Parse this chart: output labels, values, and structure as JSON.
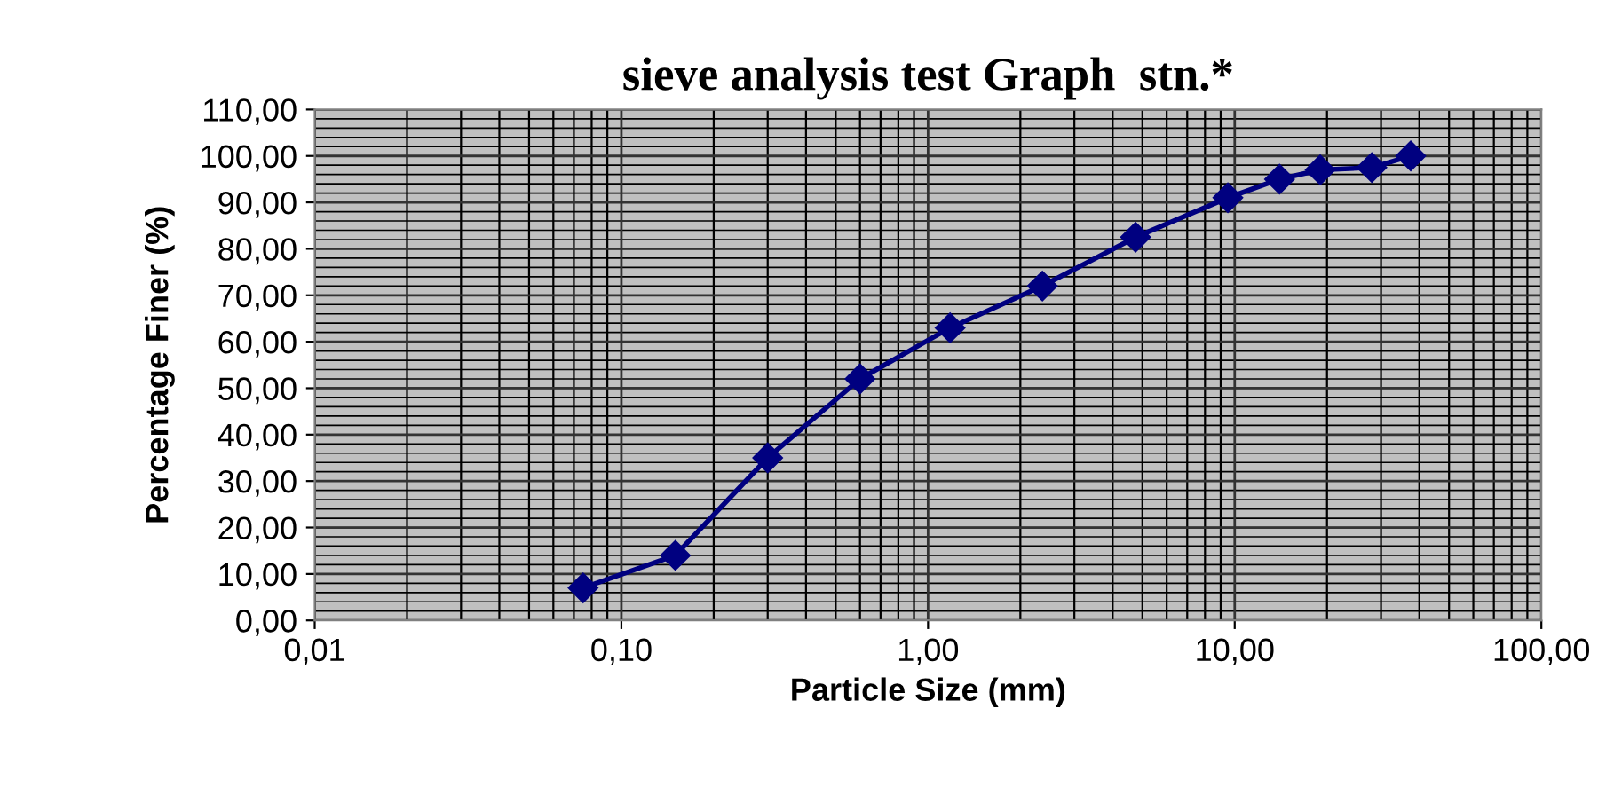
{
  "chart_data": {
    "type": "line",
    "title": "sieve analysis test Graph  stn.*",
    "xlabel": "Particle Size (mm)",
    "ylabel": "Percentage Finer (%)",
    "series": [
      {
        "color": "#000080",
        "x": [
          0.075,
          0.15,
          0.3,
          0.6,
          1.18,
          2.36,
          4.75,
          9.5,
          14,
          19,
          28,
          37.5
        ],
        "values": [
          7,
          14,
          35,
          52,
          63,
          72,
          82.5,
          91,
          95,
          97,
          97.5,
          100
        ]
      }
    ],
    "log": "x",
    "xlim": [
      0.01,
      100
    ],
    "ylim": [
      0,
      110
    ],
    "xticks": [
      {
        "value": 0.01,
        "label": "0,01"
      },
      {
        "value": 0.1,
        "label": "0,10"
      },
      {
        "value": 1,
        "label": "1,00"
      },
      {
        "value": 10,
        "label": "10,00"
      },
      {
        "value": 100,
        "label": "100,00"
      }
    ],
    "yticks": [
      {
        "value": 0,
        "label": "0,00"
      },
      {
        "value": 10,
        "label": "10,00"
      },
      {
        "value": 20,
        "label": "20,00"
      },
      {
        "value": 30,
        "label": "30,00"
      },
      {
        "value": 40,
        "label": "40,00"
      },
      {
        "value": 50,
        "label": "50,00"
      },
      {
        "value": 60,
        "label": "60,00"
      },
      {
        "value": 70,
        "label": "70,00"
      },
      {
        "value": 80,
        "label": "80,00"
      },
      {
        "value": 90,
        "label": "90,00"
      },
      {
        "value": 100,
        "label": "100,00"
      },
      {
        "value": 110,
        "label": "110,00"
      }
    ],
    "grid": true,
    "marker": "diamond",
    "line_style": "solid",
    "legend": false
  }
}
